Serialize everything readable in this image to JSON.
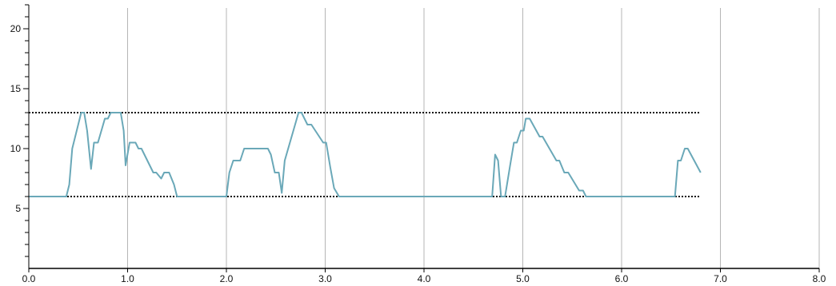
{
  "chart_data": {
    "type": "line",
    "title": "",
    "xlabel": "",
    "ylabel": "",
    "xlim": [
      0,
      8
    ],
    "ylim": [
      0,
      22
    ],
    "x_ticks": [
      "0.0",
      "1.0",
      "2.0",
      "3.0",
      "4.0",
      "5.0",
      "6.0",
      "7.0",
      "8.0"
    ],
    "y_ticks": [
      "5",
      "10",
      "15",
      "20"
    ],
    "grid": "vertical",
    "reference_lines": [
      13,
      6
    ],
    "colors": {
      "series": "#6aa8b8",
      "grid": "#b5b5b5",
      "axis": "#000000",
      "reference": "#111111"
    },
    "series": [
      {
        "x": [
          0.0,
          0.38,
          0.41,
          0.44,
          0.53,
          0.56,
          0.59,
          0.63,
          0.66,
          0.7,
          0.77,
          0.8,
          0.83,
          0.93,
          0.96,
          0.98,
          1.02,
          1.08,
          1.11,
          1.14,
          1.26,
          1.29,
          1.34,
          1.37,
          1.42,
          1.47,
          1.5,
          2.0,
          2.03,
          2.07,
          2.14,
          2.18,
          2.42,
          2.45,
          2.49,
          2.53,
          2.56,
          2.59,
          2.73,
          2.76,
          2.82,
          2.86,
          2.98,
          3.01,
          3.05,
          3.09,
          3.14,
          4.69,
          4.72,
          4.75,
          4.78,
          4.82,
          4.87,
          4.91,
          4.94,
          4.98,
          5.01,
          5.03,
          5.07,
          5.17,
          5.2,
          5.34,
          5.37,
          5.42,
          5.46,
          5.57,
          5.61,
          5.64,
          6.54,
          6.57,
          6.6,
          6.64,
          6.67,
          6.8
        ],
        "y": [
          6,
          6,
          7,
          10,
          13,
          13,
          11.5,
          8.3,
          10.5,
          10.5,
          12.5,
          12.5,
          13,
          13,
          11.5,
          8.6,
          10.5,
          10.5,
          10,
          10,
          8,
          8,
          7.5,
          8,
          8,
          7,
          6,
          6,
          8,
          9,
          9,
          10,
          10,
          9.5,
          8,
          8,
          6.3,
          9,
          13,
          13,
          12,
          12,
          10.5,
          10.5,
          8.5,
          6.7,
          6,
          6,
          9.5,
          9,
          6,
          6,
          8.5,
          10.5,
          10.5,
          11.5,
          11.5,
          12.5,
          12.5,
          11,
          11,
          9,
          9,
          8,
          8,
          6.5,
          6.5,
          6,
          6,
          9,
          9,
          10,
          10,
          8
        ]
      }
    ]
  }
}
